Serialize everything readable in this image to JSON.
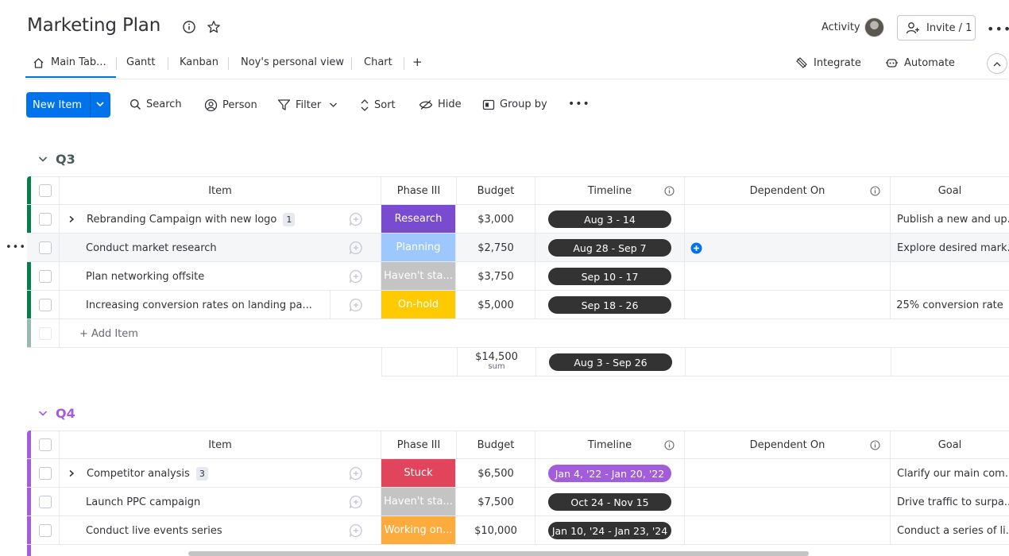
{
  "board": {
    "title": "Marketing Plan",
    "activity_label": "Activity",
    "invite_label": "Invite / 1"
  },
  "tabs": [
    {
      "label": "Main Tab..."
    },
    {
      "label": "Gantt"
    },
    {
      "label": "Kanban"
    },
    {
      "label": "Noy's personal view"
    },
    {
      "label": "Chart"
    },
    {
      "label": "+"
    }
  ],
  "right_tools": {
    "integrate": "Integrate",
    "automate": "Automate"
  },
  "toolbar": {
    "new_item": "New Item",
    "search": "Search",
    "person": "Person",
    "filter": "Filter",
    "sort": "Sort",
    "hide": "Hide",
    "group_by": "Group by"
  },
  "columns": {
    "item": "Item",
    "phase": "Phase III",
    "budget": "Budget",
    "timeline": "Timeline",
    "dependent": "Dependent On",
    "goal": "Goal"
  },
  "groups": [
    {
      "name": "Q3",
      "color": "#037f4c",
      "title_color": "#4b5a59",
      "rows": [
        {
          "item": "Rebranding Campaign with new logo",
          "subitems": "1",
          "phase": "Research",
          "phase_color": "#784bd1",
          "budget": "$3,000",
          "timeline": "Aug 3 - 14",
          "goal": "Publish a new and up..."
        },
        {
          "item": "Conduct market research",
          "subitems": "",
          "phase": "Planning",
          "phase_color": "#9cc7ff",
          "budget": "$2,750",
          "timeline": "Aug 28 - Sep 7",
          "goal": "Explore desired mark..."
        },
        {
          "item": "Plan networking offsite",
          "subitems": "",
          "phase": "Haven't sta...",
          "phase_color": "#c4c4c4",
          "budget": "$3,750",
          "timeline": "Sep 10 - 17",
          "goal": ""
        },
        {
          "item": "Increasing conversion rates on landing pa...",
          "subitems": "",
          "phase": "On-hold",
          "phase_color": "#ffcb00",
          "budget": "$5,000",
          "timeline": "Sep 18 - 26",
          "goal": "25% conversion rate"
        }
      ],
      "add_item": "+ Add Item",
      "summary": {
        "budget": "$14,500",
        "budget_label": "sum",
        "timeline": "Aug 3 - Sep 26"
      }
    },
    {
      "name": "Q4",
      "color": "#a25ddc",
      "title_color": "#a25ddc",
      "rows": [
        {
          "item": "Competitor analysis",
          "subitems": "3",
          "phase": "Stuck",
          "phase_color": "#e2445c",
          "budget": "$6,500",
          "timeline": "Jan 4, '22 - Jan 20, '22",
          "timeline_color": "#a25ddc",
          "goal": "Clarify our main com..."
        },
        {
          "item": "Launch PPC campaign",
          "subitems": "",
          "phase": "Haven't sta...",
          "phase_color": "#c4c4c4",
          "budget": "$7,500",
          "timeline": "Oct 24 - Nov 15",
          "goal": "Drive traffic to surpa..."
        },
        {
          "item": "Conduct live events series",
          "subitems": "",
          "phase": "Working on...",
          "phase_color": "#fdab3d",
          "budget": "$10,000",
          "timeline": "Jan 10, '24 - Jan 23, '24",
          "goal": "Conduct a series of li..."
        }
      ]
    }
  ]
}
